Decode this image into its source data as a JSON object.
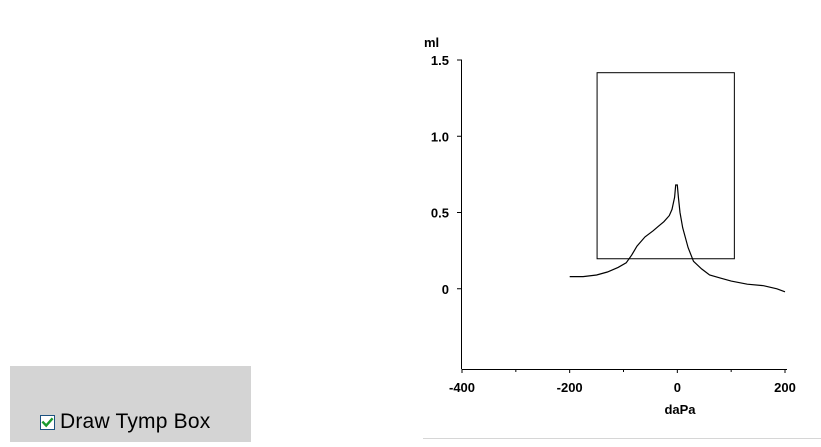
{
  "controls": {
    "draw_tymp_box": {
      "label": "Draw Tymp Box",
      "checked": true,
      "check_color": "#1a9a2e",
      "border_color": "#1c5180"
    }
  },
  "chart_data": {
    "type": "line",
    "ylabel": "ml",
    "xlabel": "daPa",
    "xlim": [
      -400,
      200
    ],
    "ylim": [
      -0.5,
      1.5
    ],
    "x_ticks": [
      -400,
      -200,
      0,
      200
    ],
    "x_minor_ticks": [
      -300,
      -100,
      100
    ],
    "x_tick_labels": [
      "-400",
      "-200",
      "0",
      "200"
    ],
    "y_ticks": [
      1.5,
      1.0,
      0.5,
      0
    ],
    "y_tick_labels": [
      "1.5",
      "1.0",
      "0.5",
      "0"
    ],
    "grid": false,
    "tymp_box": {
      "x_min": -150,
      "x_max": 105,
      "y_min": 0.2,
      "y_max": 1.42
    },
    "series": [
      {
        "x": [
          -200,
          -175,
          -150,
          -130,
          -110,
          -95,
          -85,
          -75,
          -60,
          -45,
          -35,
          -25,
          -15,
          -10,
          -5,
          -3,
          0,
          2,
          5,
          10,
          20,
          30,
          45,
          60,
          80,
          100,
          130,
          160,
          185,
          200
        ],
        "y": [
          0.08,
          0.08,
          0.09,
          0.11,
          0.14,
          0.17,
          0.22,
          0.28,
          0.34,
          0.38,
          0.41,
          0.44,
          0.48,
          0.52,
          0.6,
          0.68,
          0.68,
          0.6,
          0.5,
          0.4,
          0.27,
          0.18,
          0.13,
          0.09,
          0.07,
          0.05,
          0.03,
          0.02,
          0.0,
          -0.02
        ]
      }
    ]
  }
}
